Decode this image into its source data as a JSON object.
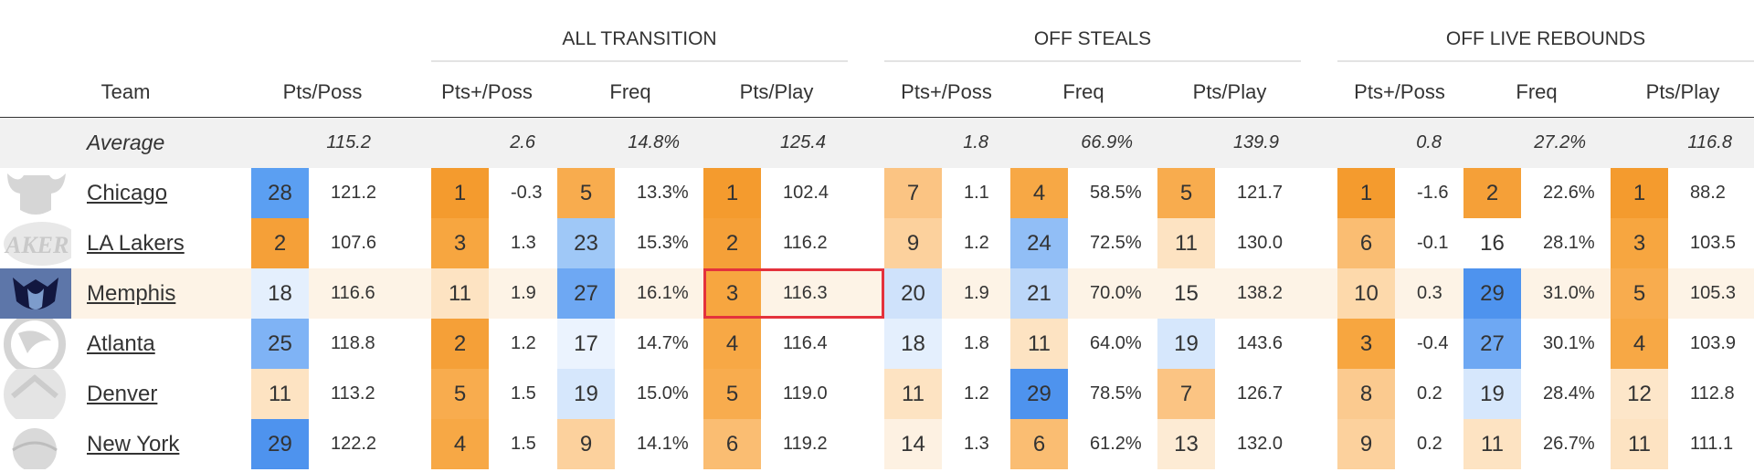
{
  "groups": [
    {
      "key": "trans",
      "label": "ALL TRANSITION"
    },
    {
      "key": "steals",
      "label": "OFF STEALS"
    },
    {
      "key": "reb",
      "label": "OFF LIVE REBOUNDS"
    }
  ],
  "headers": {
    "team": "Team",
    "pts_poss": "Pts/Poss",
    "trans_ptsplus": "Pts+/Poss",
    "trans_freq": "Freq",
    "trans_ptsplay": "Pts/Play",
    "steals_ptsplus": "Pts+/Poss",
    "steals_freq": "Freq",
    "steals_ptsplay": "Pts/Play",
    "reb_ptsplus": "Pts+/Poss",
    "reb_freq": "Freq",
    "reb_ptsplay": "Pts/Play"
  },
  "average": {
    "label": "Average",
    "pts_poss": "115.2",
    "trans_ptsplus": "2.6",
    "trans_freq": "14.8%",
    "trans_ptsplay": "125.4",
    "steals_ptsplus": "1.8",
    "steals_freq": "66.9%",
    "steals_ptsplay": "139.9",
    "reb_ptsplus": "0.8",
    "reb_freq": "27.2%",
    "reb_ptsplay": "116.8"
  },
  "rows": [
    {
      "team": "Chicago",
      "logo": "bulls-logo",
      "highlight": false,
      "cells": [
        {
          "rank": 28,
          "value": "121.2",
          "color": "#5b9ff2"
        },
        {
          "rank": 1,
          "value": "-0.3",
          "color": "#f49b2e"
        },
        {
          "rank": 5,
          "value": "13.3%",
          "color": "#f8ac4e"
        },
        {
          "rank": 1,
          "value": "102.4",
          "color": "#f49b2e"
        },
        {
          "rank": 7,
          "value": "1.1",
          "color": "#fbc483"
        },
        {
          "rank": 4,
          "value": "58.5%",
          "color": "#f7a845"
        },
        {
          "rank": 5,
          "value": "121.7",
          "color": "#f8ac4e"
        },
        {
          "rank": 1,
          "value": "-1.6",
          "color": "#f49b2e"
        },
        {
          "rank": 2,
          "value": "22.6%",
          "color": "#f5a038"
        },
        {
          "rank": 1,
          "value": "88.2",
          "color": "#f49b2e"
        }
      ]
    },
    {
      "team": "LA Lakers",
      "logo": "lakers-logo",
      "highlight": false,
      "cells": [
        {
          "rank": 2,
          "value": "107.6",
          "color": "#f5a038"
        },
        {
          "rank": 3,
          "value": "1.3",
          "color": "#f7a640"
        },
        {
          "rank": 23,
          "value": "15.3%",
          "color": "#9fc8f7"
        },
        {
          "rank": 2,
          "value": "116.2",
          "color": "#f5a038"
        },
        {
          "rank": 9,
          "value": "1.2",
          "color": "#fcd19d"
        },
        {
          "rank": 24,
          "value": "72.5%",
          "color": "#91bef6"
        },
        {
          "rank": 11,
          "value": "130.0",
          "color": "#fde3c2"
        },
        {
          "rank": 6,
          "value": "-0.1",
          "color": "#fabd72"
        },
        {
          "rank": 16,
          "value": "28.1%",
          "color": "#ffffff"
        },
        {
          "rank": 3,
          "value": "103.5",
          "color": "#f7a640"
        }
      ]
    },
    {
      "team": "Memphis",
      "logo": "grizzlies-logo",
      "highlight": true,
      "cells": [
        {
          "rank": 18,
          "value": "116.6",
          "color": "#e4effd"
        },
        {
          "rank": 11,
          "value": "1.9",
          "color": "#fde3c2"
        },
        {
          "rank": 27,
          "value": "16.1%",
          "color": "#6ea8f3"
        },
        {
          "rank": 3,
          "value": "116.3",
          "color": "#f7a640"
        },
        {
          "rank": 20,
          "value": "1.9",
          "color": "#cfe2fb"
        },
        {
          "rank": 21,
          "value": "70.0%",
          "color": "#bcd7f9"
        },
        {
          "rank": 15,
          "value": "138.2",
          "color": "#fdf3e6"
        },
        {
          "rank": 10,
          "value": "0.3",
          "color": "#fdd9ab"
        },
        {
          "rank": 29,
          "value": "31.0%",
          "color": "#4e93ee"
        },
        {
          "rank": 5,
          "value": "105.3",
          "color": "#f8ac4e"
        }
      ]
    },
    {
      "team": "Atlanta",
      "logo": "hawks-logo",
      "highlight": false,
      "cells": [
        {
          "rank": 25,
          "value": "118.8",
          "color": "#7fb3f5"
        },
        {
          "rank": 2,
          "value": "1.2",
          "color": "#f5a038"
        },
        {
          "rank": 17,
          "value": "14.7%",
          "color": "#ebf3fe"
        },
        {
          "rank": 4,
          "value": "116.4",
          "color": "#f7a845"
        },
        {
          "rank": 18,
          "value": "1.8",
          "color": "#e4effd"
        },
        {
          "rank": 11,
          "value": "64.0%",
          "color": "#fde3c2"
        },
        {
          "rank": 19,
          "value": "143.6",
          "color": "#d6e7fc"
        },
        {
          "rank": 3,
          "value": "-0.4",
          "color": "#f7a640"
        },
        {
          "rank": 27,
          "value": "30.1%",
          "color": "#6ea8f3"
        },
        {
          "rank": 4,
          "value": "103.9",
          "color": "#f7a845"
        }
      ]
    },
    {
      "team": "Denver",
      "logo": "nuggets-logo",
      "highlight": false,
      "cells": [
        {
          "rank": 11,
          "value": "113.2",
          "color": "#fde3c2"
        },
        {
          "rank": 5,
          "value": "1.5",
          "color": "#f8ac4e"
        },
        {
          "rank": 19,
          "value": "15.0%",
          "color": "#d6e7fc"
        },
        {
          "rank": 5,
          "value": "119.0",
          "color": "#f8ac4e"
        },
        {
          "rank": 11,
          "value": "1.2",
          "color": "#fde3c2"
        },
        {
          "rank": 29,
          "value": "78.5%",
          "color": "#4e93ee"
        },
        {
          "rank": 7,
          "value": "126.7",
          "color": "#fbc483"
        },
        {
          "rank": 8,
          "value": "0.2",
          "color": "#fbca8f"
        },
        {
          "rank": 19,
          "value": "28.4%",
          "color": "#d6e7fc"
        },
        {
          "rank": 12,
          "value": "112.8",
          "color": "#fde6c9"
        }
      ]
    },
    {
      "team": "New York",
      "logo": "knicks-logo",
      "highlight": false,
      "cells": [
        {
          "rank": 29,
          "value": "122.2",
          "color": "#4e93ee"
        },
        {
          "rank": 4,
          "value": "1.5",
          "color": "#f7a845"
        },
        {
          "rank": 9,
          "value": "14.1%",
          "color": "#fcd19d"
        },
        {
          "rank": 6,
          "value": "119.2",
          "color": "#fabd72"
        },
        {
          "rank": 14,
          "value": "1.3",
          "color": "#fdf1e2"
        },
        {
          "rank": 6,
          "value": "61.2%",
          "color": "#fabd72"
        },
        {
          "rank": 13,
          "value": "132.0",
          "color": "#fdebd4"
        },
        {
          "rank": 9,
          "value": "0.2",
          "color": "#fcd19d"
        },
        {
          "rank": 11,
          "value": "26.7%",
          "color": "#fde3c2"
        },
        {
          "rank": 11,
          "value": "111.1",
          "color": "#fde3c2"
        }
      ]
    }
  ]
}
